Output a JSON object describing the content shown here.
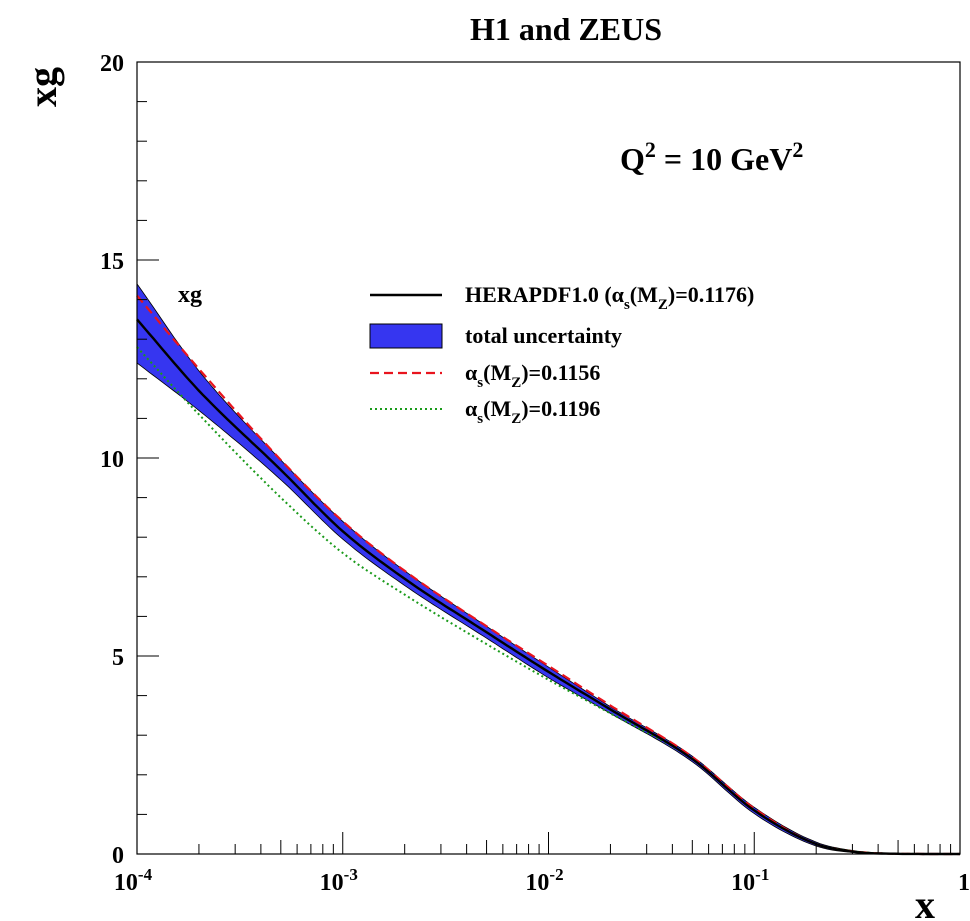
{
  "chart_data": {
    "type": "line",
    "title": "H1 and ZEUS",
    "annotation": {
      "base": "Q",
      "sup1": "2",
      "mid": " = 10 GeV",
      "sup2": "2"
    },
    "panel_label": "xg",
    "xlabel": "x",
    "ylabel": "xg",
    "xscale": "log",
    "xlim": [
      0.0001,
      1
    ],
    "ylim": [
      0,
      20
    ],
    "grid": false,
    "legend_position": "upper-right",
    "x_tick_labels": [
      {
        "x": 0.0001,
        "base": "10",
        "exp": "-4"
      },
      {
        "x": 0.001,
        "base": "10",
        "exp": "-3"
      },
      {
        "x": 0.01,
        "base": "10",
        "exp": "-2"
      },
      {
        "x": 0.1,
        "base": "10",
        "exp": "-1"
      },
      {
        "x": 1,
        "base": "1",
        "exp": ""
      }
    ],
    "y_tick_labels": [
      {
        "y": 0,
        "label": "0"
      },
      {
        "y": 5,
        "label": "5"
      },
      {
        "y": 10,
        "label": "10"
      },
      {
        "y": 15,
        "label": "15"
      },
      {
        "y": 20,
        "label": "20"
      }
    ],
    "x": [
      0.0001,
      0.0002,
      0.0005,
      0.001,
      0.002,
      0.005,
      0.01,
      0.02,
      0.05,
      0.1,
      0.2,
      0.3,
      0.5,
      0.7,
      1.0
    ],
    "series": [
      {
        "name": "HERAPDF1.0 (αs(MZ)=0.1176)",
        "color": "#000000",
        "style": "solid",
        "values": [
          13.5,
          11.7,
          9.7,
          8.15,
          6.95,
          5.6,
          4.6,
          3.65,
          2.4,
          1.1,
          0.25,
          0.06,
          0.005,
          0.001,
          0.0
        ]
      },
      {
        "name": "total uncertainty",
        "type": "band",
        "color": "#3636f0",
        "upper": [
          14.4,
          12.2,
          9.95,
          8.4,
          7.15,
          5.75,
          4.72,
          3.72,
          2.47,
          1.18,
          0.3,
          0.09,
          0.01,
          0.002,
          0.0
        ],
        "lower": [
          12.4,
          11.2,
          9.45,
          7.95,
          6.78,
          5.45,
          4.45,
          3.55,
          2.33,
          1.02,
          0.2,
          0.04,
          0.003,
          0.0005,
          0.0
        ]
      },
      {
        "name": "αs(MZ)=0.1156",
        "color": "#e8141e",
        "style": "dashed",
        "values": [
          14.1,
          12.25,
          9.95,
          8.4,
          7.15,
          5.75,
          4.75,
          3.75,
          2.45,
          1.15,
          0.25,
          0.07,
          0.005,
          0.001,
          0.0
        ]
      },
      {
        "name": "αs(MZ)=0.1196",
        "color": "#1a9a1a",
        "style": "dotted",
        "values": [
          12.8,
          11.1,
          9.0,
          7.6,
          6.55,
          5.3,
          4.4,
          3.55,
          2.4,
          1.1,
          0.25,
          0.07,
          0.005,
          0.001,
          0.0
        ]
      }
    ],
    "legend": [
      {
        "parts": [
          [
            "HERAPDF1.0 (",
            ""
          ],
          [
            "α",
            ""
          ],
          [
            "s",
            "sub"
          ],
          [
            "(M",
            ""
          ],
          [
            "Z",
            "sub"
          ],
          [
            ")=0.1176)",
            ""
          ]
        ]
      },
      {
        "parts": [
          [
            "total uncertainty",
            ""
          ]
        ]
      },
      {
        "parts": [
          [
            "α",
            ""
          ],
          [
            "s",
            "sub"
          ],
          [
            "(M",
            ""
          ],
          [
            "Z",
            "sub"
          ],
          [
            ")=0.1156",
            ""
          ]
        ]
      },
      {
        "parts": [
          [
            "α",
            ""
          ],
          [
            "s",
            "sub"
          ],
          [
            "(M",
            ""
          ],
          [
            "Z",
            "sub"
          ],
          [
            ")=0.1196",
            ""
          ]
        ]
      }
    ]
  }
}
